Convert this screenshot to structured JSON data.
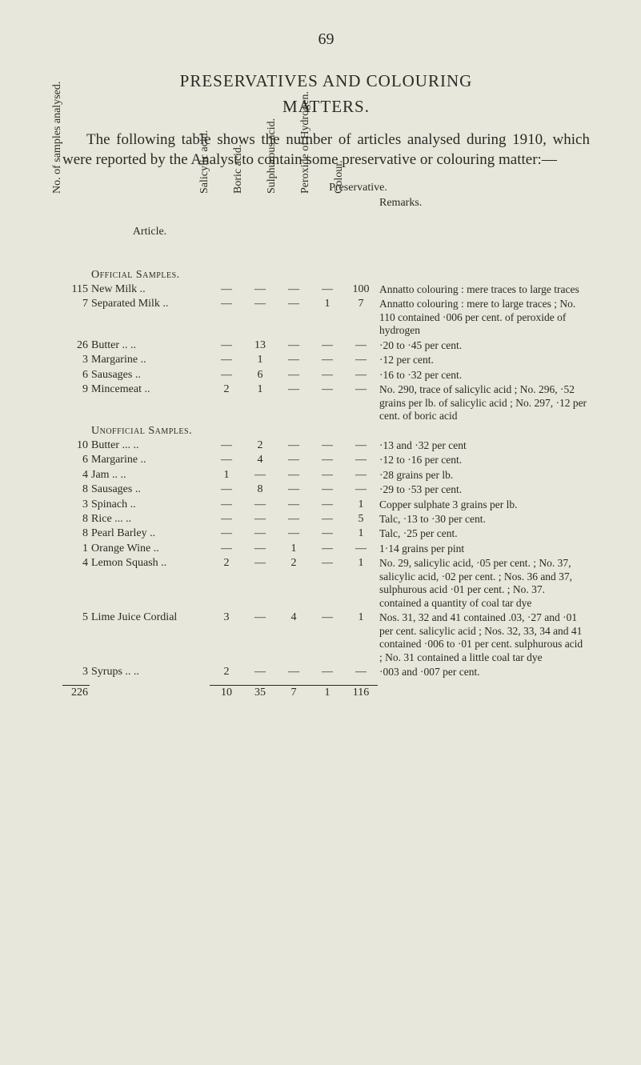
{
  "page_number": "69",
  "title_line1": "PRESERVATIVES AND COLOURING",
  "title_line2": "MATTERS.",
  "intro_text": "The following table shows the number of articles analysed during 1910, which were reported by the Analyst to contain some preservative or colouring matter:—",
  "preservative_label": "Preservative.",
  "headers": {
    "no": "No. of samples\nanalysed.",
    "article": "Article.",
    "salicylic": "Salicylic acid.",
    "boric": "Boric acid.",
    "sulphurous": "Sulphurous\nacid.",
    "peroxide": "Peroxide of\nHydrogen.",
    "colour": "Colour.",
    "remarks": "Remarks."
  },
  "dash": "—",
  "sections": [
    {
      "label": "Official Samples.",
      "rows": [
        {
          "n": "115",
          "article": "New Milk",
          "dots": "..",
          "s": "—",
          "b": "—",
          "su": "—",
          "p": "—",
          "c": "100",
          "remarks": "Annatto colouring : mere traces to large traces"
        },
        {
          "n": "7",
          "article": "Separated Milk",
          "dots": "..",
          "s": "—",
          "b": "—",
          "su": "—",
          "p": "1",
          "c": "7",
          "remarks": "Annatto colouring : mere to large traces ; No. 110 contained ·006 per cent. of peroxide of hydrogen"
        },
        {
          "n": "26",
          "article": "Butter ..",
          "dots": "..",
          "s": "—",
          "b": "13",
          "su": "—",
          "p": "—",
          "c": "—",
          "remarks": "·20 to ·45 per cent."
        },
        {
          "n": "3",
          "article": "Margarine",
          "dots": "..",
          "s": "—",
          "b": "1",
          "su": "—",
          "p": "—",
          "c": "—",
          "remarks": "·12 per cent."
        },
        {
          "n": "6",
          "article": "Sausages",
          "dots": "..",
          "s": "—",
          "b": "6",
          "su": "—",
          "p": "—",
          "c": "—",
          "remarks": "·16 to ·32 per cent."
        },
        {
          "n": "9",
          "article": "Mincemeat",
          "dots": "..",
          "s": "2",
          "b": "1",
          "su": "—",
          "p": "—",
          "c": "—",
          "remarks": "No. 290, trace of salicylic acid ; No. 296, ·52 grains per lb. of salicylic acid ; No. 297, ·12 per cent. of boric acid"
        }
      ]
    },
    {
      "label": "Unofficial Samples.",
      "rows": [
        {
          "n": "10",
          "article": "Butter ...",
          "dots": "..",
          "s": "—",
          "b": "2",
          "su": "—",
          "p": "—",
          "c": "—",
          "remarks": "·13 and ·32 per cent"
        },
        {
          "n": "6",
          "article": "Margarine",
          "dots": "..",
          "s": "—",
          "b": "4",
          "su": "—",
          "p": "—",
          "c": "—",
          "remarks": "·12 to ·16 per cent."
        },
        {
          "n": "4",
          "article": "Jam    ..",
          "dots": "..",
          "s": "1",
          "b": "—",
          "su": "—",
          "p": "—",
          "c": "—",
          "remarks": "·28 grains per lb."
        },
        {
          "n": "8",
          "article": "Sausages",
          "dots": "..",
          "s": "—",
          "b": "8",
          "su": "—",
          "p": "—",
          "c": "—",
          "remarks": "·29 to ·53 per cent."
        },
        {
          "n": "3",
          "article": "Spinach",
          "dots": "..",
          "s": "—",
          "b": "—",
          "su": "—",
          "p": "—",
          "c": "1",
          "remarks": "Copper sulphate 3 grains per lb."
        },
        {
          "n": "8",
          "article": "Rice    ...",
          "dots": "..",
          "s": "—",
          "b": "—",
          "su": "—",
          "p": "—",
          "c": "5",
          "remarks": "Talc, ·13 to ·30 per cent."
        },
        {
          "n": "8",
          "article": "Pearl Barley",
          "dots": "..",
          "s": "—",
          "b": "—",
          "su": "—",
          "p": "—",
          "c": "1",
          "remarks": "Talc, ·25 per cent."
        },
        {
          "n": "1",
          "article": "Orange Wine",
          "dots": "..",
          "s": "—",
          "b": "—",
          "su": "1",
          "p": "—",
          "c": "—",
          "remarks": "1·14 grains per pint"
        },
        {
          "n": "4",
          "article": "Lemon Squash",
          "dots": "..",
          "s": "2",
          "b": "—",
          "su": "2",
          "p": "—",
          "c": "1",
          "remarks": "No. 29, salicylic acid, ·05 per cent. ; No. 37, salicylic acid, ·02 per cent. ; Nos. 36 and 37, sulphurous acid ·01 per cent. ; No. 37. contained a quantity of coal tar dye"
        },
        {
          "n": "5",
          "article": "Lime Juice Cordial",
          "dots": "",
          "s": "3",
          "b": "—",
          "su": "4",
          "p": "—",
          "c": "1",
          "remarks": "Nos. 31, 32 and 41 contained .03, ·27 and ·01 per cent. salicylic acid ; Nos. 32, 33, 34 and 41 contained ·006 to ·01 per cent. sulphurous acid ; No. 31 contained a little coal tar dye"
        },
        {
          "n": "3",
          "article": "Syrups ..",
          "dots": "..",
          "s": "2",
          "b": "—",
          "su": "—",
          "p": "—",
          "c": "—",
          "remarks": "·003 and ·007 per cent."
        }
      ]
    }
  ],
  "totals": {
    "n": "226",
    "s": "10",
    "b": "35",
    "su": "7",
    "p": "1",
    "c": "116"
  }
}
